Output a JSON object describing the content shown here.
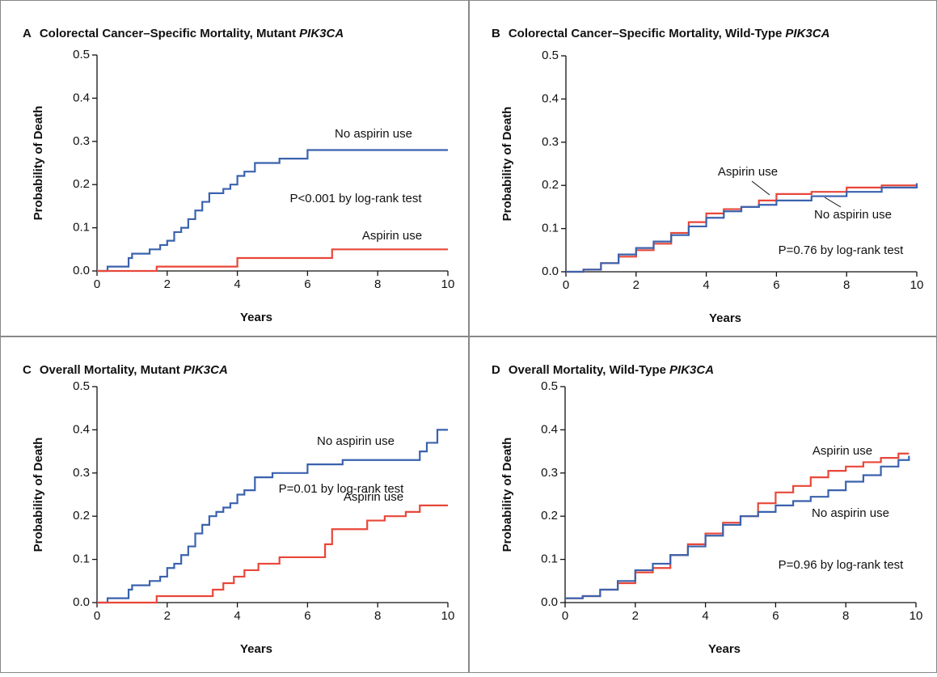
{
  "chart_data": [
    {
      "type": "step",
      "panel": "A",
      "title": "Colorectal Cancer–Specific Mortality, Mutant",
      "title_italic": "PIK3CA",
      "xlabel": "Years",
      "ylabel": "Probability of Death",
      "annotation": "P<0.001 by log-rank test",
      "xlim": [
        0,
        10
      ],
      "ylim": [
        0,
        0.5
      ],
      "xticks": [
        0,
        2,
        4,
        6,
        8,
        10
      ],
      "yticks": [
        {
          "value": 0,
          "label": "0.0"
        },
        0.1,
        0.2,
        0.3,
        0.4,
        0.5
      ],
      "series": [
        {
          "name": "No aspirin use",
          "color": "#3a62ad",
          "x": [
            0,
            0.3,
            0.9,
            1.0,
            1.5,
            1.8,
            2.0,
            2.2,
            2.4,
            2.6,
            2.8,
            3.0,
            3.2,
            3.6,
            3.8,
            4.0,
            4.2,
            4.5,
            5.0,
            5.2,
            6.0,
            10
          ],
          "values": [
            0,
            0.01,
            0.03,
            0.04,
            0.05,
            0.06,
            0.07,
            0.09,
            0.1,
            0.12,
            0.14,
            0.16,
            0.18,
            0.19,
            0.2,
            0.22,
            0.23,
            0.25,
            0.25,
            0.26,
            0.28,
            0.28
          ]
        },
        {
          "name": "Aspirin use",
          "color": "#e8473a",
          "x": [
            0,
            1.7,
            4.0,
            6.7,
            10
          ],
          "values": [
            0,
            0.01,
            0.03,
            0.05,
            0.05
          ]
        }
      ]
    },
    {
      "type": "step",
      "panel": "B",
      "title": "Colorectal Cancer–Specific Mortality, Wild-Type",
      "title_italic": "PIK3CA",
      "xlabel": "Years",
      "ylabel": "Probability of Death",
      "annotation": "P=0.76 by log-rank test",
      "xlim": [
        0,
        10
      ],
      "ylim": [
        0,
        0.5
      ],
      "xticks": [
        0,
        2,
        4,
        6,
        8,
        10
      ],
      "yticks": [
        {
          "value": 0,
          "label": "0.0"
        },
        0.1,
        0.2,
        0.3,
        0.4,
        0.5
      ],
      "series": [
        {
          "name": "Aspirin use",
          "color": "#e8473a",
          "x": [
            0,
            0.5,
            1,
            1.5,
            2,
            2.5,
            3,
            3.5,
            4,
            4.5,
            5,
            5.5,
            6,
            7,
            8,
            9,
            10
          ],
          "values": [
            0,
            0.005,
            0.02,
            0.035,
            0.05,
            0.065,
            0.09,
            0.115,
            0.135,
            0.145,
            0.15,
            0.165,
            0.18,
            0.185,
            0.195,
            0.2,
            0.2
          ]
        },
        {
          "name": "No aspirin use",
          "color": "#3a62ad",
          "x": [
            0,
            0.5,
            1,
            1.5,
            2,
            2.5,
            3,
            3.5,
            4,
            4.5,
            5,
            5.5,
            6,
            7,
            8,
            9,
            10
          ],
          "values": [
            0,
            0.005,
            0.02,
            0.04,
            0.055,
            0.07,
            0.085,
            0.105,
            0.125,
            0.14,
            0.15,
            0.155,
            0.165,
            0.175,
            0.185,
            0.195,
            0.205
          ]
        }
      ]
    },
    {
      "type": "step",
      "panel": "C",
      "title": "Overall Mortality, Mutant",
      "title_italic": "PIK3CA",
      "xlabel": "Years",
      "ylabel": "Probability of Death",
      "annotation": "P=0.01 by log-rank test",
      "xlim": [
        0,
        10
      ],
      "ylim": [
        0,
        0.5
      ],
      "xticks": [
        0,
        2,
        4,
        6,
        8,
        10
      ],
      "yticks": [
        {
          "value": 0,
          "label": "0.0"
        },
        0.1,
        0.2,
        0.3,
        0.4,
        0.5
      ],
      "series": [
        {
          "name": "No aspirin use",
          "color": "#3a62ad",
          "x": [
            0,
            0.3,
            0.9,
            1.0,
            1.5,
            1.8,
            2.0,
            2.2,
            2.4,
            2.6,
            2.8,
            3.0,
            3.2,
            3.4,
            3.6,
            3.8,
            4.0,
            4.2,
            4.5,
            5.0,
            6.0,
            7.0,
            9.2,
            9.4,
            9.7,
            10
          ],
          "values": [
            0,
            0.01,
            0.03,
            0.04,
            0.05,
            0.06,
            0.08,
            0.09,
            0.11,
            0.13,
            0.16,
            0.18,
            0.2,
            0.21,
            0.22,
            0.23,
            0.25,
            0.26,
            0.29,
            0.3,
            0.32,
            0.33,
            0.35,
            0.37,
            0.4,
            0.4
          ]
        },
        {
          "name": "Aspirin use",
          "color": "#e8473a",
          "x": [
            0,
            1.7,
            3.3,
            3.6,
            3.9,
            4.2,
            4.6,
            5.2,
            5.7,
            6.5,
            6.7,
            7.2,
            7.7,
            8.2,
            8.8,
            9.2,
            10
          ],
          "values": [
            0,
            0.015,
            0.03,
            0.045,
            0.06,
            0.075,
            0.09,
            0.105,
            0.105,
            0.135,
            0.17,
            0.17,
            0.19,
            0.2,
            0.21,
            0.225,
            0.225
          ]
        }
      ]
    },
    {
      "type": "step",
      "panel": "D",
      "title": "Overall Mortality, Wild-Type",
      "title_italic": "PIK3CA",
      "xlabel": "Years",
      "ylabel": "Probability of Death",
      "annotation": "P=0.96 by log-rank test",
      "xlim": [
        0,
        10
      ],
      "ylim": [
        0,
        0.5
      ],
      "xticks": [
        0,
        2,
        4,
        6,
        8,
        10
      ],
      "yticks": [
        {
          "value": 0,
          "label": "0.0"
        },
        0.1,
        0.2,
        0.3,
        0.4,
        0.5
      ],
      "series": [
        {
          "name": "Aspirin use",
          "color": "#e8473a",
          "x": [
            0,
            0.5,
            1,
            1.5,
            2,
            2.5,
            3,
            3.5,
            4,
            4.5,
            5,
            5.5,
            6,
            6.5,
            7,
            7.5,
            8,
            8.5,
            9,
            9.5,
            9.8
          ],
          "values": [
            0.01,
            0.015,
            0.03,
            0.045,
            0.07,
            0.08,
            0.11,
            0.135,
            0.16,
            0.185,
            0.2,
            0.23,
            0.255,
            0.27,
            0.29,
            0.305,
            0.315,
            0.325,
            0.335,
            0.345,
            0.345
          ]
        },
        {
          "name": "No aspirin use",
          "color": "#3a62ad",
          "x": [
            0,
            0.5,
            1,
            1.5,
            2,
            2.5,
            3,
            3.5,
            4,
            4.5,
            5,
            5.5,
            6,
            6.5,
            7,
            7.5,
            8,
            8.5,
            9,
            9.5,
            9.8
          ],
          "values": [
            0.01,
            0.015,
            0.03,
            0.05,
            0.075,
            0.09,
            0.11,
            0.13,
            0.155,
            0.18,
            0.2,
            0.21,
            0.225,
            0.235,
            0.245,
            0.26,
            0.28,
            0.295,
            0.315,
            0.33,
            0.34
          ]
        }
      ]
    }
  ]
}
